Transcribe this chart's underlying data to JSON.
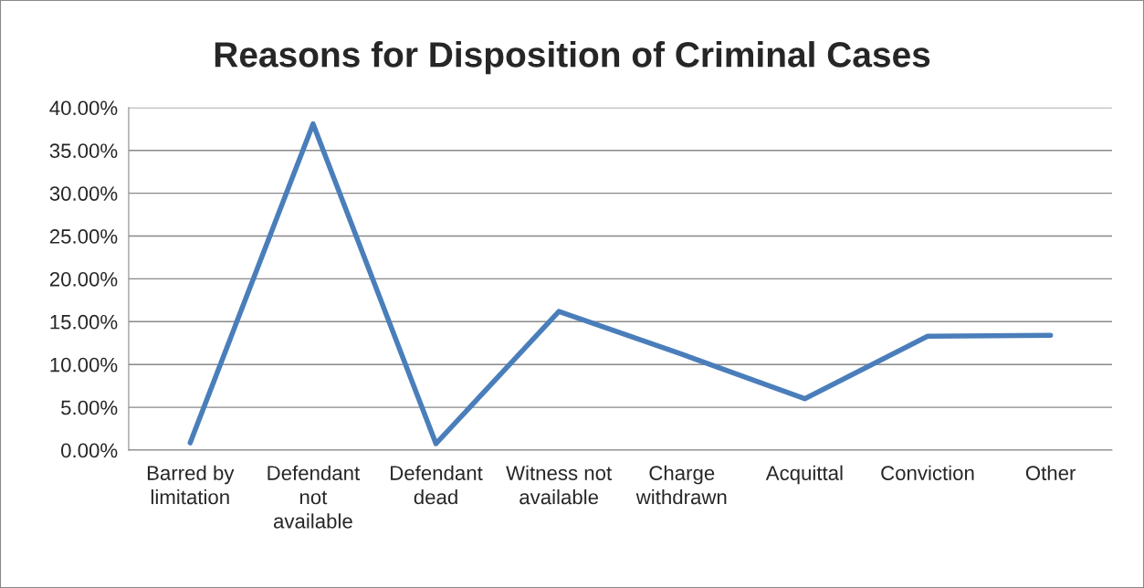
{
  "chart_data": {
    "type": "line",
    "title": "Reasons for Disposition of Criminal Cases",
    "categories": [
      "Barred by\nlimitation",
      "Defendant\nnot\navailable",
      "Defendant\ndead",
      "Witness not\navailable",
      "Charge\nwithdrawn",
      "Acquittal",
      "Conviction",
      "Other"
    ],
    "series": [
      {
        "color": "#4a7ebb",
        "values": [
          0.85,
          38.1,
          0.75,
          16.2,
          11.2,
          6.0,
          13.3,
          13.4
        ]
      }
    ],
    "ylim": [
      0,
      40
    ],
    "yticks": [
      {
        "value": 0,
        "label": "0.00%"
      },
      {
        "value": 5,
        "label": "5.00%"
      },
      {
        "value": 10,
        "label": "10.00%"
      },
      {
        "value": 15,
        "label": "15.00%"
      },
      {
        "value": 20,
        "label": "20.00%"
      },
      {
        "value": 25,
        "label": "25.00%"
      },
      {
        "value": 30,
        "label": "30.00%"
      },
      {
        "value": 35,
        "label": "35.00%"
      },
      {
        "value": 40,
        "label": "40.00%"
      }
    ],
    "grid": "y",
    "legend": false,
    "marker": "none",
    "line_style": "solid"
  }
}
